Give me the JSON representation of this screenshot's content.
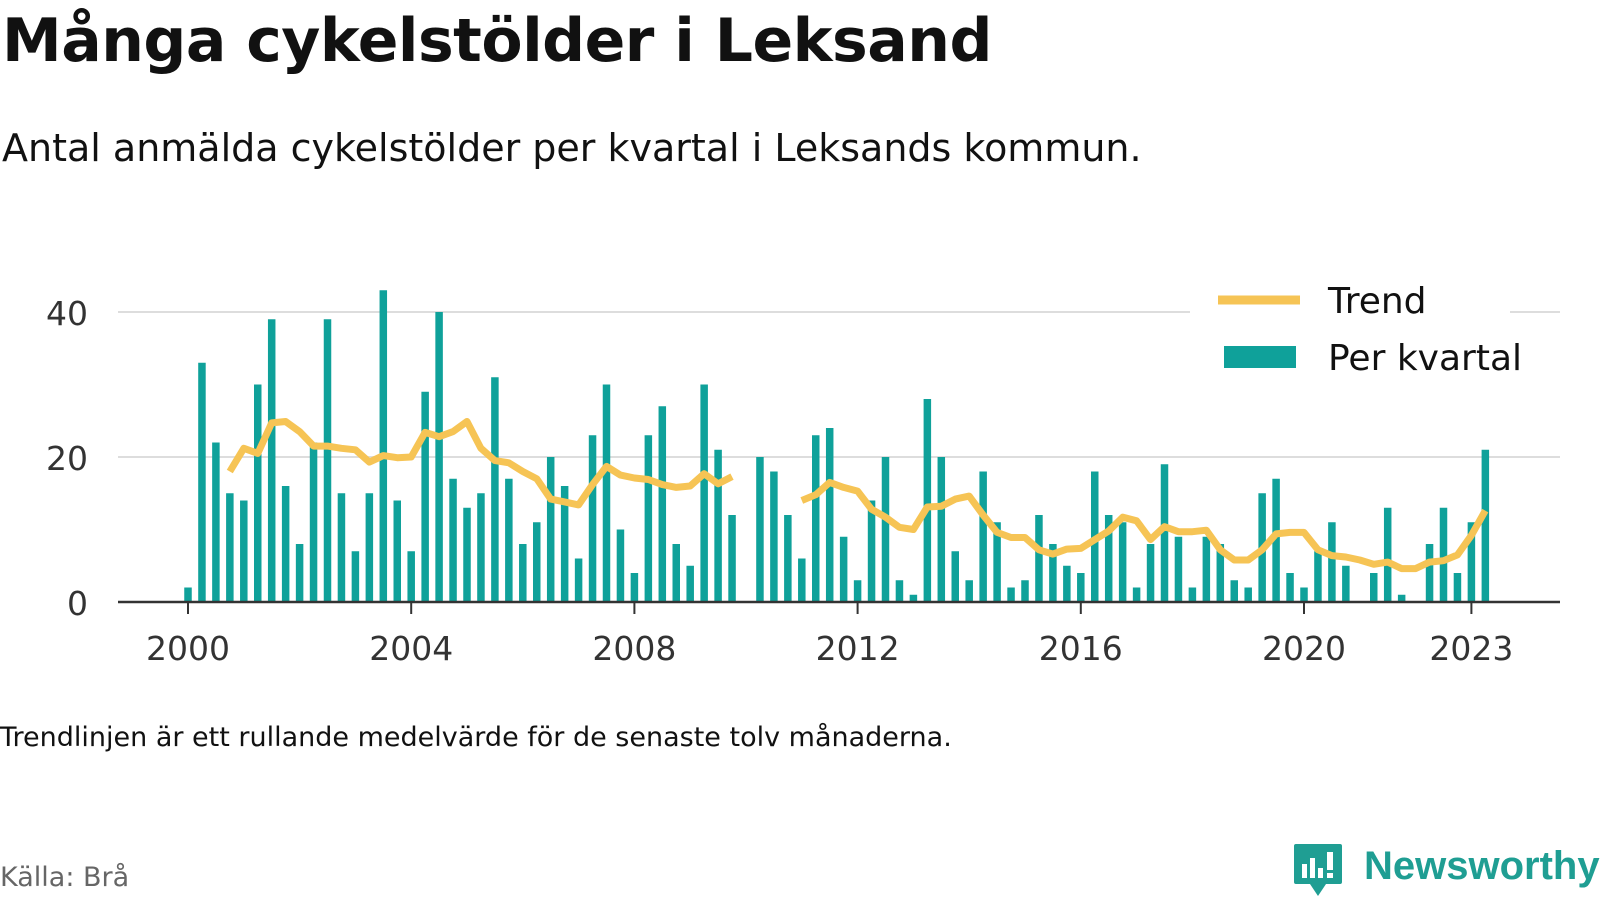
{
  "title": "Många cykelstölder i Leksand",
  "subtitle": "Antal anmälda cykelstölder per kvartal i Leksands kommun.",
  "note": "Trendlinjen är ett rullande medelvärde för de senaste tolv månaderna.",
  "source": "Källa: Brå",
  "brand": {
    "name": "Newsworthy",
    "icon": "newsworthy-logo-icon",
    "color": "#1f9e93"
  },
  "colors": {
    "bar": "#0fa19a",
    "trend": "#f6c455",
    "grid": "#dddddd",
    "axis": "#333333"
  },
  "chart_data": {
    "type": "bar",
    "x_unit": "quarter",
    "ylim": [
      0,
      45
    ],
    "yticks": [
      0,
      20,
      40
    ],
    "xtick_labels": [
      "2000",
      "2004",
      "2008",
      "2012",
      "2016",
      "2020",
      "2023"
    ],
    "grid": true,
    "legend_position": "top-right",
    "legend": [
      "Trend",
      "Per kvartal"
    ],
    "series": [
      {
        "name": "Per kvartal",
        "kind": "bar",
        "x": [
          "2000-Q1",
          "2000-Q2",
          "2000-Q3",
          "2000-Q4",
          "2001-Q1",
          "2001-Q2",
          "2001-Q3",
          "2001-Q4",
          "2002-Q1",
          "2002-Q2",
          "2002-Q3",
          "2002-Q4",
          "2003-Q1",
          "2003-Q2",
          "2003-Q3",
          "2003-Q4",
          "2004-Q1",
          "2004-Q2",
          "2004-Q3",
          "2004-Q4",
          "2005-Q1",
          "2005-Q2",
          "2005-Q3",
          "2005-Q4",
          "2006-Q1",
          "2006-Q2",
          "2006-Q3",
          "2006-Q4",
          "2007-Q1",
          "2007-Q2",
          "2007-Q3",
          "2007-Q4",
          "2008-Q1",
          "2008-Q2",
          "2008-Q3",
          "2008-Q4",
          "2009-Q1",
          "2009-Q2",
          "2009-Q3",
          "2009-Q4",
          "2010-Q1",
          "2010-Q2",
          "2010-Q3",
          "2010-Q4",
          "2011-Q1",
          "2011-Q2",
          "2011-Q3",
          "2011-Q4",
          "2012-Q1",
          "2012-Q2",
          "2012-Q3",
          "2012-Q4",
          "2013-Q1",
          "2013-Q2",
          "2013-Q3",
          "2013-Q4",
          "2014-Q1",
          "2014-Q2",
          "2014-Q3",
          "2014-Q4",
          "2015-Q1",
          "2015-Q2",
          "2015-Q3",
          "2015-Q4",
          "2016-Q1",
          "2016-Q2",
          "2016-Q3",
          "2016-Q4",
          "2017-Q1",
          "2017-Q2",
          "2017-Q3",
          "2017-Q4",
          "2018-Q1",
          "2018-Q2",
          "2018-Q3",
          "2018-Q4",
          "2019-Q1",
          "2019-Q2",
          "2019-Q3",
          "2019-Q4",
          "2020-Q1",
          "2020-Q2",
          "2020-Q3",
          "2020-Q4",
          "2021-Q1",
          "2021-Q2",
          "2021-Q3",
          "2021-Q4",
          "2022-Q1",
          "2022-Q2",
          "2022-Q3",
          "2022-Q4",
          "2023-Q1",
          "2023-Q2"
        ],
        "values": [
          2,
          33,
          22,
          15,
          14,
          30,
          39,
          16,
          8,
          22,
          39,
          15,
          7,
          15,
          43,
          14,
          7,
          29,
          40,
          17,
          13,
          15,
          31,
          17,
          8,
          11,
          20,
          16,
          6,
          23,
          30,
          10,
          4,
          23,
          27,
          8,
          5,
          30,
          21,
          12,
          null,
          20,
          18,
          12,
          6,
          23,
          24,
          9,
          3,
          14,
          20,
          3,
          1,
          28,
          20,
          7,
          3,
          18,
          11,
          2,
          3,
          12,
          8,
          5,
          4,
          18,
          12,
          11,
          2,
          8,
          19,
          9,
          2,
          9,
          8,
          3,
          2,
          15,
          17,
          4,
          2,
          7,
          11,
          5,
          null,
          4,
          13,
          1,
          null,
          8,
          13,
          4,
          11,
          21
        ]
      },
      {
        "name": "Trend",
        "kind": "line",
        "x": [
          "2000-Q4",
          "2001-Q1",
          "2001-Q2",
          "2001-Q3",
          "2001-Q4",
          "2002-Q1",
          "2002-Q2",
          "2002-Q3",
          "2002-Q4",
          "2003-Q1",
          "2003-Q2",
          "2003-Q3",
          "2003-Q4",
          "2004-Q1",
          "2004-Q2",
          "2004-Q3",
          "2004-Q4",
          "2005-Q1",
          "2005-Q2",
          "2005-Q3",
          "2005-Q4",
          "2006-Q1",
          "2006-Q2",
          "2006-Q3",
          "2006-Q4",
          "2007-Q1",
          "2007-Q2",
          "2007-Q3",
          "2007-Q4",
          "2008-Q1",
          "2008-Q2",
          "2008-Q3",
          "2008-Q4",
          "2009-Q1",
          "2009-Q2",
          "2009-Q3",
          "2009-Q4",
          null,
          "2011-Q1",
          "2011-Q2",
          "2011-Q3",
          "2011-Q4",
          "2012-Q1",
          "2012-Q2",
          "2012-Q3",
          "2012-Q4",
          "2013-Q1",
          "2013-Q2",
          "2013-Q3",
          "2013-Q4",
          "2014-Q1",
          "2014-Q2",
          "2014-Q3",
          "2014-Q4",
          "2015-Q1",
          "2015-Q2",
          "2015-Q3",
          "2015-Q4",
          "2016-Q1",
          "2016-Q2",
          "2016-Q3",
          "2016-Q4",
          "2017-Q1",
          "2017-Q2",
          "2017-Q3",
          "2017-Q4",
          "2018-Q1",
          "2018-Q2",
          "2018-Q3",
          "2018-Q4",
          "2019-Q1",
          "2019-Q2",
          "2019-Q3",
          "2019-Q4",
          "2020-Q1",
          "2020-Q2",
          "2020-Q3",
          "2020-Q4",
          "2021-Q1",
          "2021-Q2",
          "2021-Q3",
          "2021-Q4",
          "2022-Q1",
          "2022-Q2",
          "2022-Q3",
          "2022-Q4",
          "2023-Q1",
          "2023-Q2"
        ],
        "values": [
          18,
          21.2,
          20.5,
          24.7,
          24.9,
          23.5,
          21.5,
          21.5,
          21.2,
          21,
          19.3,
          20.2,
          19.9,
          20,
          23.4,
          22.8,
          23.5,
          24.9,
          21.2,
          19.5,
          19.2,
          18,
          17,
          14.2,
          13.8,
          13.4,
          16.2,
          18.7,
          17.5,
          17.1,
          16.9,
          16.2,
          15.8,
          16,
          17.7,
          16.3,
          17.3,
          null,
          14,
          14.8,
          16.5,
          15.8,
          15.3,
          12.8,
          11.7,
          10.3,
          10,
          13.1,
          13.2,
          14.2,
          14.6,
          12,
          9.6,
          8.9,
          8.9,
          7.2,
          6.6,
          7.3,
          7.4,
          8.6,
          9.8,
          11.7,
          11.2,
          8.6,
          10.4,
          9.7,
          9.7,
          9.9,
          7.2,
          5.8,
          5.8,
          7.2,
          9.4,
          9.6,
          9.6,
          7.2,
          6.4,
          6.2,
          5.8,
          5.2,
          5.5,
          4.6,
          4.6,
          5.5,
          5.7,
          6.5,
          9.2,
          12.6
        ]
      }
    ]
  }
}
